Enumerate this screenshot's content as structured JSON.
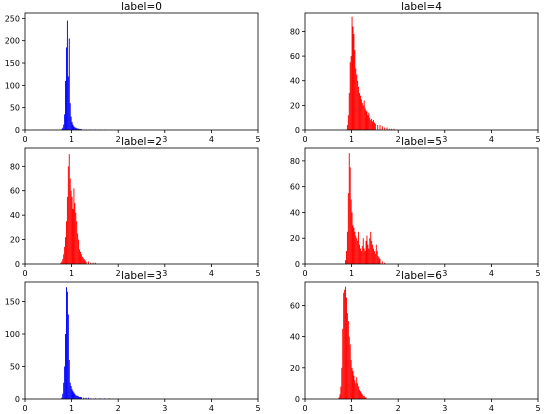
{
  "chart_data": [
    {
      "type": "bar",
      "title": "label=0",
      "color": "#0000ff",
      "xlim": [
        0,
        5
      ],
      "ylim": [
        0,
        262
      ],
      "xticks": [
        "0",
        "1",
        "2",
        "3",
        "4",
        "5"
      ],
      "yticks": [
        0,
        50,
        100,
        150,
        200,
        250
      ],
      "bin_width": 0.02,
      "x": [
        0.78,
        0.8,
        0.82,
        0.84,
        0.86,
        0.88,
        0.9,
        0.92,
        0.94,
        0.96,
        0.98,
        1.0,
        1.02,
        1.04,
        1.06,
        1.08,
        1.1,
        1.12,
        1.14,
        1.16,
        1.18,
        1.2,
        1.25,
        1.3,
        1.35,
        1.4,
        1.5,
        1.6,
        1.7
      ],
      "values": [
        2,
        5,
        12,
        35,
        110,
        185,
        245,
        120,
        205,
        60,
        30,
        18,
        12,
        8,
        6,
        5,
        4,
        3,
        3,
        2,
        2,
        2,
        1,
        1,
        1,
        1,
        1,
        1,
        1
      ]
    },
    {
      "type": "bar",
      "title": "label=4",
      "color": "#ff0000",
      "xlim": [
        0,
        5
      ],
      "ylim": [
        0,
        95
      ],
      "xticks": [
        "0",
        "1",
        "2",
        "3",
        "4",
        "5"
      ],
      "yticks": [
        0,
        20,
        40,
        60,
        80
      ],
      "bin_width": 0.02,
      "x": [
        0.9,
        0.92,
        0.94,
        0.96,
        0.98,
        1.0,
        1.02,
        1.04,
        1.06,
        1.08,
        1.1,
        1.12,
        1.14,
        1.16,
        1.18,
        1.2,
        1.22,
        1.24,
        1.26,
        1.28,
        1.3,
        1.32,
        1.34,
        1.36,
        1.38,
        1.4,
        1.42,
        1.44,
        1.46,
        1.48,
        1.5,
        1.55,
        1.6,
        1.65,
        1.7,
        1.75,
        1.8,
        1.85,
        1.9
      ],
      "values": [
        4,
        12,
        30,
        55,
        60,
        92,
        84,
        78,
        65,
        50,
        45,
        40,
        35,
        30,
        28,
        25,
        22,
        20,
        24,
        18,
        16,
        15,
        12,
        14,
        10,
        8,
        9,
        7,
        8,
        6,
        5,
        4,
        4,
        3,
        2,
        2,
        1,
        1,
        1
      ]
    },
    {
      "type": "bar",
      "title": "label=2",
      "color": "#ff0000",
      "xlim": [
        0,
        5
      ],
      "ylim": [
        0,
        95
      ],
      "xticks": [
        "0",
        "1",
        "2",
        "3",
        "4",
        "5"
      ],
      "yticks": [
        0,
        20,
        40,
        60,
        80
      ],
      "bin_width": 0.02,
      "x": [
        0.76,
        0.78,
        0.8,
        0.82,
        0.84,
        0.86,
        0.88,
        0.9,
        0.92,
        0.94,
        0.96,
        0.98,
        1.0,
        1.02,
        1.04,
        1.06,
        1.08,
        1.1,
        1.12,
        1.14,
        1.16,
        1.18,
        1.2,
        1.22,
        1.24,
        1.26,
        1.28,
        1.3,
        1.35,
        1.4,
        1.45,
        1.5
      ],
      "values": [
        1,
        2,
        4,
        8,
        14,
        22,
        35,
        55,
        80,
        90,
        70,
        60,
        55,
        45,
        62,
        50,
        42,
        35,
        25,
        20,
        12,
        10,
        8,
        6,
        5,
        4,
        3,
        2,
        2,
        1,
        1,
        1
      ]
    },
    {
      "type": "bar",
      "title": "label=5",
      "color": "#ff0000",
      "xlim": [
        0,
        5
      ],
      "ylim": [
        0,
        90
      ],
      "xticks": [
        "0",
        "1",
        "2",
        "3",
        "4",
        "5"
      ],
      "yticks": [
        0,
        20,
        40,
        60,
        80
      ],
      "bin_width": 0.02,
      "x": [
        0.86,
        0.88,
        0.9,
        0.92,
        0.94,
        0.96,
        0.98,
        1.0,
        1.02,
        1.04,
        1.06,
        1.08,
        1.1,
        1.12,
        1.14,
        1.16,
        1.18,
        1.2,
        1.22,
        1.24,
        1.26,
        1.28,
        1.3,
        1.32,
        1.34,
        1.36,
        1.38,
        1.4,
        1.42,
        1.44,
        1.46,
        1.48,
        1.5,
        1.52,
        1.54,
        1.56,
        1.58,
        1.6,
        1.65,
        1.7
      ],
      "values": [
        3,
        10,
        25,
        55,
        86,
        75,
        50,
        40,
        30,
        28,
        25,
        22,
        20,
        18,
        25,
        15,
        12,
        10,
        14,
        20,
        12,
        10,
        18,
        22,
        15,
        12,
        20,
        25,
        18,
        15,
        12,
        10,
        8,
        15,
        10,
        6,
        5,
        4,
        2,
        1
      ]
    },
    {
      "type": "bar",
      "title": "label=3",
      "color": "#0000ff",
      "xlim": [
        0,
        5
      ],
      "ylim": [
        0,
        180
      ],
      "xticks": [
        "0",
        "1",
        "2",
        "3",
        "4",
        "5"
      ],
      "yticks": [
        0,
        50,
        100,
        150
      ],
      "bin_width": 0.02,
      "x": [
        0.78,
        0.8,
        0.82,
        0.84,
        0.86,
        0.88,
        0.9,
        0.92,
        0.94,
        0.96,
        0.98,
        1.0,
        1.02,
        1.04,
        1.06,
        1.08,
        1.1,
        1.12,
        1.14,
        1.16,
        1.18,
        1.2,
        1.25,
        1.3,
        1.35,
        1.4,
        1.5,
        1.6,
        1.7,
        1.8
      ],
      "values": [
        2,
        8,
        25,
        50,
        100,
        172,
        165,
        130,
        60,
        25,
        20,
        15,
        12,
        10,
        8,
        6,
        5,
        5,
        4,
        3,
        3,
        3,
        2,
        2,
        2,
        1,
        1,
        1,
        1,
        1
      ]
    },
    {
      "type": "bar",
      "title": "label=6",
      "color": "#ff0000",
      "xlim": [
        0,
        5
      ],
      "ylim": [
        0,
        75
      ],
      "xticks": [
        "0",
        "1",
        "2",
        "3",
        "4",
        "5"
      ],
      "yticks": [
        0,
        20,
        40,
        60
      ],
      "bin_width": 0.02,
      "x": [
        0.72,
        0.74,
        0.76,
        0.78,
        0.8,
        0.82,
        0.84,
        0.86,
        0.88,
        0.9,
        0.92,
        0.94,
        0.96,
        0.98,
        1.0,
        1.02,
        1.04,
        1.06,
        1.08,
        1.1,
        1.12,
        1.14,
        1.16,
        1.18,
        1.2,
        1.22,
        1.24,
        1.26,
        1.28,
        1.3
      ],
      "values": [
        1,
        3,
        8,
        20,
        45,
        68,
        70,
        72,
        65,
        55,
        50,
        40,
        35,
        25,
        20,
        18,
        15,
        12,
        10,
        14,
        10,
        8,
        6,
        5,
        4,
        3,
        2,
        2,
        1,
        1
      ]
    }
  ]
}
